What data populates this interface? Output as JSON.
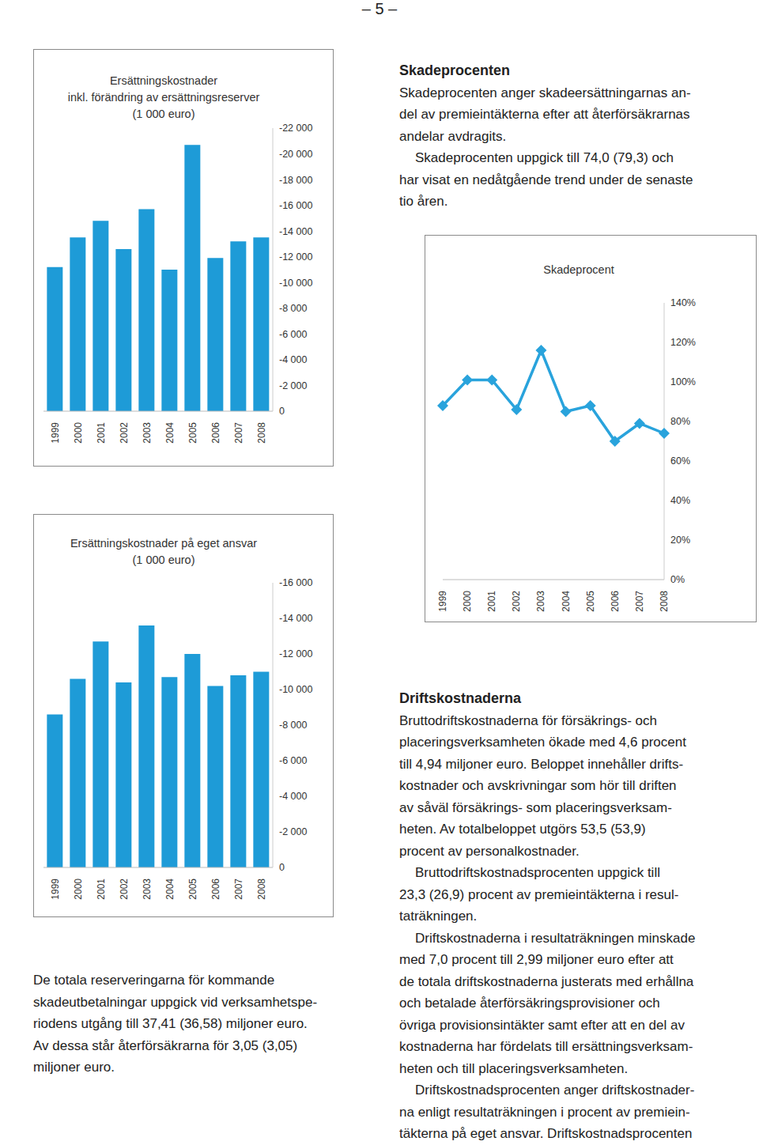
{
  "page_number": "– 5 –",
  "chart_data": [
    {
      "type": "bar",
      "title": "Ersättningskostnader\ninkl. förändring av ersättningsreserver\n(1 000 euro)",
      "categories": [
        "1999",
        "2000",
        "2001",
        "2002",
        "2003",
        "2004",
        "2005",
        "2006",
        "2007",
        "2008"
      ],
      "values": [
        -11200,
        -13500,
        -14800,
        -12600,
        -15700,
        -11000,
        -20700,
        -11900,
        -13200,
        -13500
      ],
      "color": "#1e9bd7",
      "ylim": [
        0,
        -22000
      ],
      "yticks": [
        0,
        {
          "value": -2000,
          "label": "-2 000"
        },
        {
          "value": -4000,
          "label": "-4 000"
        },
        {
          "value": -6000,
          "label": "-6 000"
        },
        {
          "value": -8000,
          "label": "-8 000"
        },
        {
          "value": -10000,
          "label": "-10 000"
        },
        {
          "value": -12000,
          "label": "-12 000"
        },
        {
          "value": -14000,
          "label": "-14 000"
        },
        {
          "value": -16000,
          "label": "-16 000"
        },
        {
          "value": -18000,
          "label": "-18 000"
        },
        {
          "value": -20000,
          "label": "-20 000"
        },
        {
          "value": -22000,
          "label": "-22 000"
        }
      ]
    },
    {
      "type": "line",
      "title": "Skadeprocent",
      "categories": [
        "1999",
        "2000",
        "2001",
        "2002",
        "2003",
        "2004",
        "2005",
        "2006",
        "2007",
        "2008"
      ],
      "values": [
        88,
        101,
        101,
        86,
        116,
        85,
        88,
        70,
        79,
        74
      ],
      "color": "#29a3dc",
      "marker": "diamond",
      "ylim": [
        0,
        140
      ],
      "yticks": [
        {
          "value": 0,
          "label": "0%"
        },
        {
          "value": 20,
          "label": "20%"
        },
        {
          "value": 40,
          "label": "40%"
        },
        {
          "value": 60,
          "label": "60%"
        },
        {
          "value": 80,
          "label": "80%"
        },
        {
          "value": 100,
          "label": "100%"
        },
        {
          "value": 120,
          "label": "120%"
        },
        {
          "value": 140,
          "label": "140%"
        }
      ]
    },
    {
      "type": "bar",
      "title": "Ersättningskostnader på eget ansvar\n(1 000 euro)",
      "categories": [
        "1999",
        "2000",
        "2001",
        "2002",
        "2003",
        "2004",
        "2005",
        "2006",
        "2007",
        "2008"
      ],
      "values": [
        -8600,
        -10600,
        -12700,
        -10400,
        -13600,
        -10700,
        -12000,
        -10200,
        -10800,
        -11000
      ],
      "color": "#1e9bd7",
      "ylim": [
        0,
        -16000
      ],
      "yticks": [
        0,
        {
          "value": -2000,
          "label": "-2 000"
        },
        {
          "value": -4000,
          "label": "-4 000"
        },
        {
          "value": -6000,
          "label": "-6 000"
        },
        {
          "value": -8000,
          "label": "-8 000"
        },
        {
          "value": -10000,
          "label": "-10 000"
        },
        {
          "value": -12000,
          "label": "-12 000"
        },
        {
          "value": -14000,
          "label": "-14 000"
        },
        {
          "value": -16000,
          "label": "-16 000"
        }
      ]
    }
  ],
  "text_blocks": [
    {
      "heading": "Skadeprocenten",
      "paragraphs": [
        [
          "Skadeprocenten anger skadeersättningarnas an-",
          "del av premieintäkterna efter att återförsäkrarnas",
          "andelar avdragits."
        ],
        [
          "Skadeprocenten uppgick till 74,0 (79,3) och",
          "har visat en nedåtgående trend under de senaste",
          "tio åren."
        ]
      ]
    },
    {
      "paragraphs": [
        [
          "De totala reserveringarna för kommande",
          "skadeutbetalningar uppgick vid verksamhetspe-",
          "riodens utgång till 37,41 (36,58) miljoner euro.",
          "Av dessa står återförsäkrarna för 3,05 (3,05)",
          "miljoner euro."
        ]
      ]
    },
    {
      "heading": "Driftskostnaderna",
      "paragraphs": [
        [
          "Bruttodriftskostnaderna för försäkrings- och",
          "placeringsverksamheten ökade med 4,6 procent",
          "till 4,94 miljoner euro. Beloppet innehåller drifts-",
          "kostnader och avskrivningar som hör till driften",
          "av såväl försäkrings- som placeringsverksam-",
          "heten. Av totalbeloppet utgörs 53,5 (53,9)",
          "procent av personalkostnader."
        ],
        [
          "Bruttodriftskostnadsprocenten uppgick till",
          "23,3 (26,9) procent av premieintäkterna i resul-",
          "taträkningen."
        ],
        [
          "Driftskostnaderna i resultaträkningen minskade",
          "med 7,0 procent till 2,99 miljoner euro efter att",
          "de totala driftskostnaderna justerats med erhållna",
          "och betalade återförsäkringsprovisioner och",
          "övriga provisionsintäkter samt efter att en del av",
          "kostnaderna har fördelats till ersättningsverksam-",
          "heten och till placeringsverksamheten."
        ],
        [
          "Driftskostnadsprocenten anger driftskostnader-",
          "na enligt resultaträkningen i procent av premiein-",
          "täkterna på eget ansvar. Driftskostnadsprocenten"
        ]
      ]
    }
  ]
}
